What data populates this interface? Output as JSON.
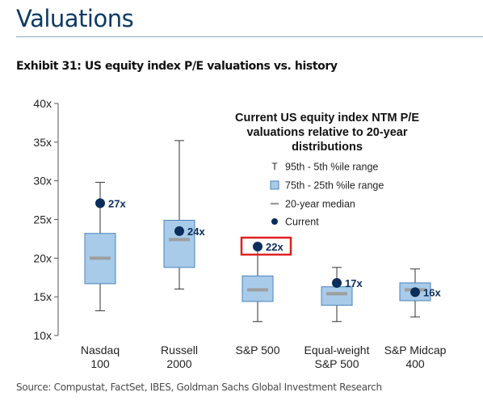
{
  "header": {
    "title": "Valuations",
    "exhibit": "Exhibit 31: US equity index P/E valuations vs. history"
  },
  "footer": {
    "source": "Source: Compustat, FactSet, IBES, Goldman Sachs Global Investment Research"
  },
  "colors": {
    "box_fill": "#a8cbe9",
    "box_stroke": "#4a83bb",
    "median": "#9e9e9e",
    "current_dot": "#0b2d5c",
    "whisker": "#333333",
    "highlight": "#e02020",
    "title": "#0b3a66"
  },
  "chart_data": {
    "type": "box",
    "title": "Current US equity index NTM P/E valuations relative to 20-year distributions",
    "title_lines": [
      "Current US equity index NTM P/E",
      "valuations relative to 20-year",
      "distributions"
    ],
    "ylim": [
      10,
      40
    ],
    "yticks": [
      10,
      15,
      20,
      25,
      30,
      35,
      40
    ],
    "ytick_labels": [
      "10x",
      "15x",
      "20x",
      "25x",
      "30x",
      "35x",
      "40x"
    ],
    "grid": false,
    "legend_position": "top-right",
    "legend": [
      {
        "marker": "T",
        "label": "95th - 5th %ile range"
      },
      {
        "marker": "box",
        "label": "75th - 25th %ile range"
      },
      {
        "marker": "dash",
        "label": "20-year median"
      },
      {
        "marker": "dot",
        "label": "Current"
      }
    ],
    "categories": [
      {
        "lines": [
          "Nasdaq",
          "100"
        ],
        "p5": 13.2,
        "p25": 16.7,
        "median": 20.0,
        "p75": 23.2,
        "p95": 29.8,
        "current": 27.1,
        "current_label": "27x",
        "highlight": false
      },
      {
        "lines": [
          "Russell",
          "2000"
        ],
        "p5": 16.0,
        "p25": 18.8,
        "median": 22.4,
        "p75": 24.9,
        "p95": 35.2,
        "current": 23.5,
        "current_label": "24x",
        "highlight": false
      },
      {
        "lines": [
          "S&P 500"
        ],
        "p5": 11.8,
        "p25": 14.4,
        "median": 15.9,
        "p75": 17.7,
        "p95": 21.5,
        "current": 21.5,
        "current_label": "22x",
        "highlight": true
      },
      {
        "lines": [
          "Equal-weight",
          "S&P 500"
        ],
        "p5": 11.8,
        "p25": 13.9,
        "median": 15.4,
        "p75": 16.3,
        "p95": 18.8,
        "current": 16.8,
        "current_label": "17x",
        "highlight": false
      },
      {
        "lines": [
          "S&P Midcap",
          "400"
        ],
        "p5": 12.4,
        "p25": 14.5,
        "median": 15.9,
        "p75": 16.8,
        "p95": 18.6,
        "current": 15.6,
        "current_label": "16x",
        "highlight": false
      }
    ]
  }
}
